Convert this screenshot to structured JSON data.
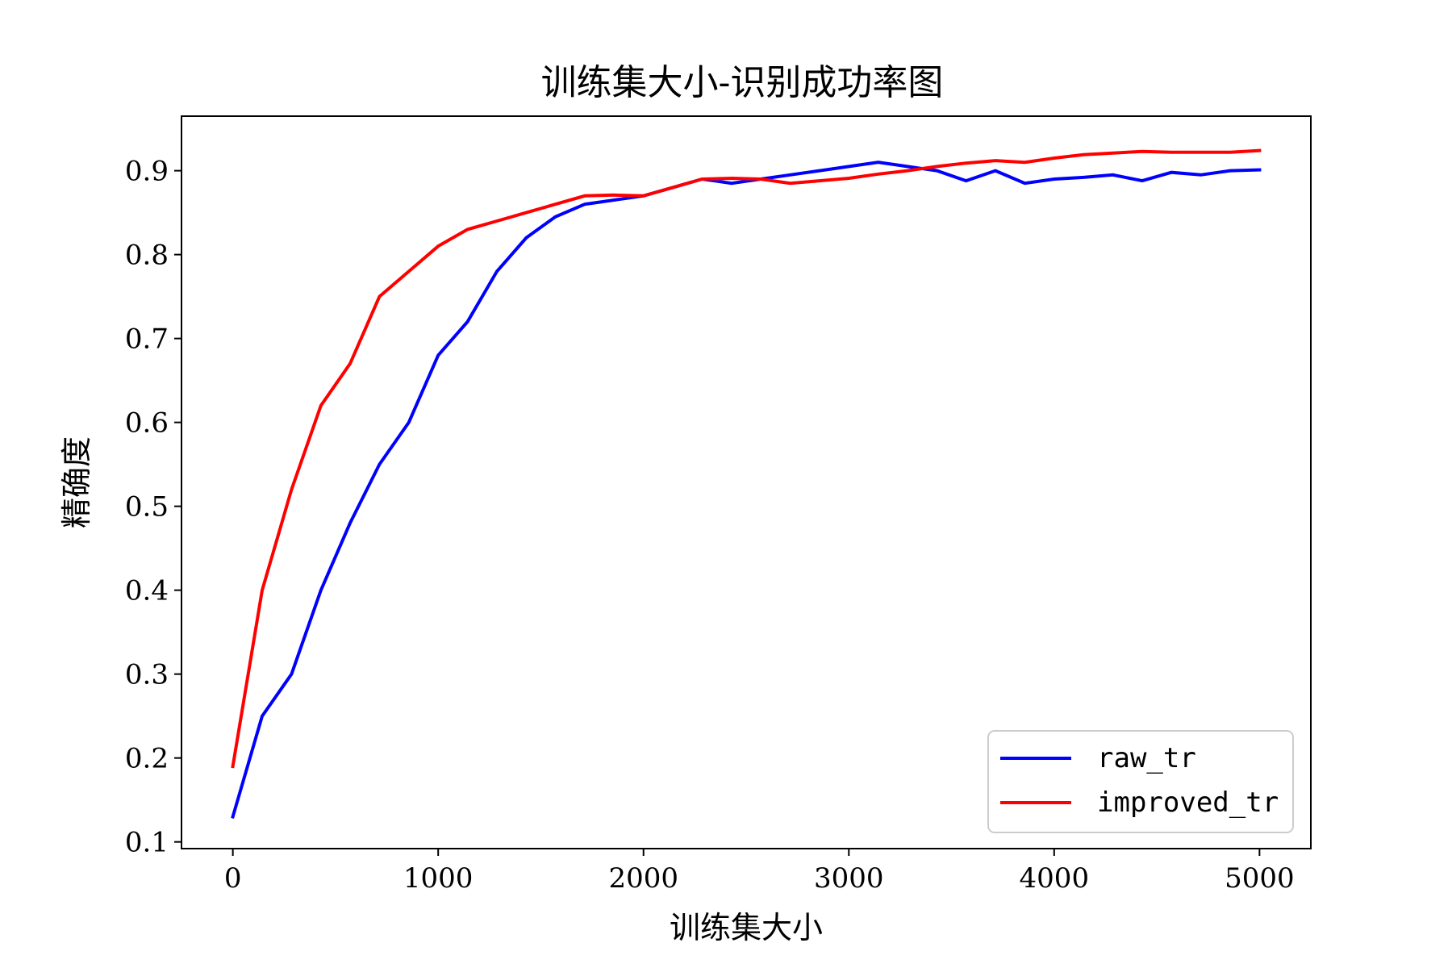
{
  "chart_data": {
    "type": "line",
    "title": "训练集大小-识别成功率图",
    "xlabel": "训练集大小",
    "ylabel": "精确度",
    "xlim": [
      -250,
      5250
    ],
    "ylim": [
      0.092,
      0.965
    ],
    "x_ticks": [
      0,
      1000,
      2000,
      3000,
      4000,
      5000
    ],
    "x_tick_labels": [
      "0",
      "1000",
      "2000",
      "3000",
      "4000",
      "5000"
    ],
    "y_ticks": [
      0.1,
      0.2,
      0.3,
      0.4,
      0.5,
      0.6,
      0.7,
      0.8,
      0.9
    ],
    "y_tick_labels": [
      "0.1",
      "0.2",
      "0.3",
      "0.4",
      "0.5",
      "0.6",
      "0.7",
      "0.8",
      "0.9"
    ],
    "grid": false,
    "legend_position": "lower-right",
    "x": [
      0,
      143,
      286,
      429,
      571,
      714,
      857,
      1000,
      1143,
      1286,
      1429,
      1571,
      1714,
      1857,
      2000,
      2143,
      2286,
      2429,
      2571,
      2714,
      2857,
      3000,
      3143,
      3286,
      3429,
      3571,
      3714,
      3857,
      4000,
      4143,
      4286,
      4429,
      4571,
      4714,
      4857,
      5000
    ],
    "series": [
      {
        "name": "raw_tr",
        "color": "#0000ff",
        "values": [
          0.13,
          0.25,
          0.3,
          0.4,
          0.48,
          0.55,
          0.6,
          0.68,
          0.72,
          0.78,
          0.82,
          0.845,
          0.86,
          0.865,
          0.87,
          0.88,
          0.89,
          0.885,
          0.89,
          0.895,
          0.9,
          0.905,
          0.91,
          0.905,
          0.9,
          0.888,
          0.9,
          0.885,
          0.89,
          0.892,
          0.895,
          0.888,
          0.898,
          0.895,
          0.9,
          0.901
        ]
      },
      {
        "name": "improved_tr",
        "color": "#ff0000",
        "values": [
          0.19,
          0.4,
          0.52,
          0.62,
          0.67,
          0.75,
          0.78,
          0.81,
          0.83,
          0.84,
          0.85,
          0.86,
          0.87,
          0.871,
          0.87,
          0.88,
          0.89,
          0.891,
          0.89,
          0.885,
          0.888,
          0.891,
          0.896,
          0.9,
          0.905,
          0.909,
          0.912,
          0.91,
          0.915,
          0.919,
          0.921,
          0.923,
          0.922,
          0.922,
          0.922,
          0.924
        ]
      }
    ]
  }
}
